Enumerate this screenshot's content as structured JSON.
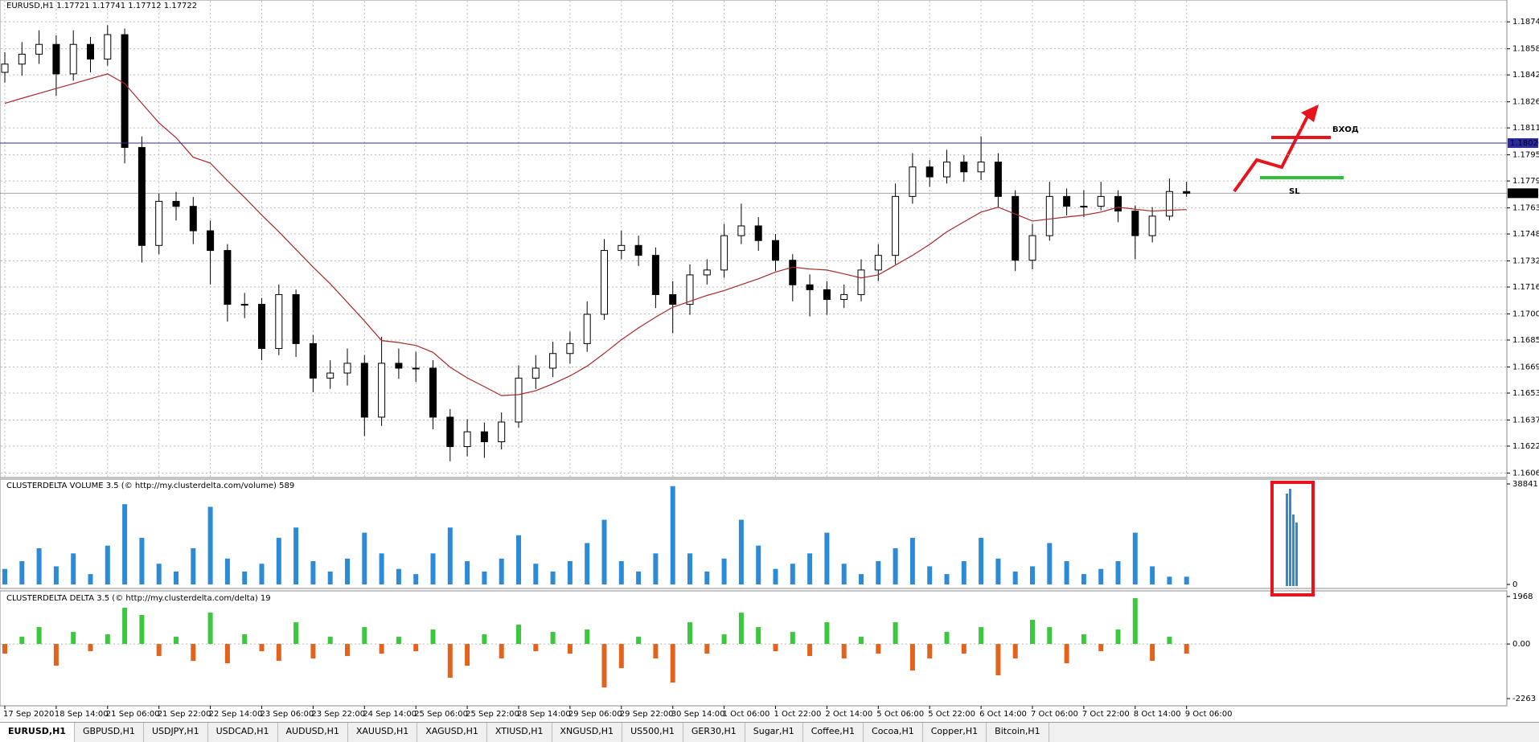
{
  "chart_data": [
    {
      "type": "candlestick",
      "title": "EURUSD,H1  1.17721 1.17741 1.17712 1.17722",
      "grid": true,
      "categories": [
        "17 Sep 2020",
        null,
        null,
        "18 Sep 14:00",
        null,
        null,
        "21 Sep 06:00",
        null,
        null,
        "21 Sep 22:00",
        null,
        null,
        "22 Sep 14:00",
        null,
        null,
        "23 Sep 06:00",
        null,
        null,
        "23 Sep 22:00",
        null,
        null,
        "24 Sep 14:00",
        null,
        null,
        "25 Sep 06:00",
        null,
        null,
        "25 Sep 22:00",
        null,
        null,
        "28 Sep 14:00",
        null,
        null,
        "29 Sep 06:00",
        null,
        null,
        "29 Sep 22:00",
        null,
        null,
        "30 Sep 14:00",
        null,
        null,
        "1 Oct 06:00",
        null,
        null,
        "1 Oct 22:00",
        null,
        null,
        "2 Oct 14:00",
        null,
        null,
        "5 Oct 06:00",
        null,
        null,
        "5 Oct 22:00",
        null,
        null,
        "6 Oct 14:00",
        null,
        null,
        "7 Oct 06:00",
        null,
        null,
        "7 Oct 22:00",
        null,
        null,
        "8 Oct 14:00",
        null,
        null,
        "9 Oct 06:00"
      ],
      "open": [
        1.1844,
        1.18489,
        1.18548,
        1.18606,
        1.18431,
        1.18606,
        1.18519,
        1.18664,
        1.17994,
        1.17412,
        1.17674,
        1.17644,
        1.17499,
        1.17382,
        1.17062,
        1.17062,
        1.168,
        1.1712,
        1.16829,
        1.16624,
        1.16654,
        1.16712,
        1.16392,
        1.16712,
        1.16683,
        1.16683,
        1.16392,
        1.16217,
        1.16305,
        1.16246,
        1.16363,
        1.16624,
        1.16683,
        1.1677,
        1.16829,
        1.17003,
        1.17382,
        1.17412,
        1.17353,
        1.1712,
        1.17062,
        1.17237,
        1.17266,
        1.1747,
        1.17528,
        1.17441,
        1.17324,
        1.17178,
        1.17149,
        1.17091,
        1.1712,
        1.17266,
        1.17353,
        1.17703,
        1.17878,
        1.17819,
        1.17907,
        1.17849,
        1.17907,
        1.17703,
        1.17324,
        1.1747,
        1.17703,
        1.17645,
        1.17645,
        1.17703,
        1.17616,
        1.1747,
        1.17586,
        1.17732
      ],
      "high": [
        1.1856,
        1.1862,
        1.1869,
        1.1866,
        1.1869,
        1.1865,
        1.1872,
        1.187,
        1.1806,
        1.1772,
        1.1773,
        1.177,
        1.1756,
        1.1742,
        1.1713,
        1.171,
        1.1718,
        1.1715,
        1.1688,
        1.1673,
        1.168,
        1.1676,
        1.1687,
        1.168,
        1.1678,
        1.1673,
        1.1644,
        1.1638,
        1.1636,
        1.1642,
        1.167,
        1.1676,
        1.1684,
        1.169,
        1.1708,
        1.1745,
        1.175,
        1.1747,
        1.174,
        1.172,
        1.173,
        1.1733,
        1.1754,
        1.1766,
        1.1758,
        1.1748,
        1.1736,
        1.1724,
        1.172,
        1.1718,
        1.1733,
        1.1742,
        1.1778,
        1.1796,
        1.1792,
        1.1798,
        1.1795,
        1.1806,
        1.1796,
        1.1774,
        1.1754,
        1.1779,
        1.1775,
        1.1774,
        1.1779,
        1.1774,
        1.1765,
        1.1764,
        1.1781,
        1.1779
      ],
      "low": [
        1.1838,
        1.1842,
        1.1849,
        1.183,
        1.1839,
        1.1844,
        1.1848,
        1.179,
        1.1731,
        1.1736,
        1.1756,
        1.1742,
        1.1718,
        1.1696,
        1.1698,
        1.1673,
        1.1676,
        1.1675,
        1.1654,
        1.1656,
        1.1658,
        1.1628,
        1.1634,
        1.1662,
        1.166,
        1.1632,
        1.1613,
        1.1616,
        1.1615,
        1.162,
        1.1633,
        1.1656,
        1.1663,
        1.1671,
        1.1678,
        1.1697,
        1.1733,
        1.1729,
        1.1704,
        1.1689,
        1.17,
        1.1718,
        1.1722,
        1.1742,
        1.1738,
        1.1726,
        1.1708,
        1.1699,
        1.17,
        1.1704,
        1.1708,
        1.172,
        1.173,
        1.1766,
        1.1776,
        1.1778,
        1.1779,
        1.178,
        1.1764,
        1.1726,
        1.1727,
        1.1744,
        1.1759,
        1.1758,
        1.1762,
        1.1755,
        1.1733,
        1.1743,
        1.1756,
        1.177
      ],
      "close": [
        1.18489,
        1.18548,
        1.18606,
        1.18431,
        1.18606,
        1.18519,
        1.18664,
        1.17994,
        1.17412,
        1.17674,
        1.17644,
        1.17499,
        1.17382,
        1.17062,
        1.17062,
        1.168,
        1.1712,
        1.16829,
        1.16624,
        1.16654,
        1.16712,
        1.16392,
        1.16712,
        1.16683,
        1.16683,
        1.16392,
        1.16217,
        1.16305,
        1.16246,
        1.16363,
        1.16624,
        1.16683,
        1.1677,
        1.16829,
        1.17003,
        1.17382,
        1.17412,
        1.17353,
        1.1712,
        1.17062,
        1.17237,
        1.17266,
        1.1747,
        1.17528,
        1.17441,
        1.17324,
        1.17178,
        1.17149,
        1.17091,
        1.1712,
        1.17266,
        1.17353,
        1.17703,
        1.17878,
        1.17819,
        1.17907,
        1.17849,
        1.17907,
        1.17703,
        1.17324,
        1.1747,
        1.17703,
        1.17645,
        1.17645,
        1.17703,
        1.17616,
        1.1747,
        1.17586,
        1.17732,
        1.17722
      ],
      "up_color": "#ffffff",
      "down_color": "#000000",
      "ma": {
        "color": "#a52a2a",
        "values": [
          1.18256,
          1.18286,
          1.18315,
          1.18344,
          1.18373,
          1.18402,
          1.18431,
          1.18373,
          1.18256,
          1.1814,
          1.18052,
          1.17936,
          1.17901,
          1.17796,
          1.17697,
          1.17592,
          1.17493,
          1.17388,
          1.17283,
          1.17184,
          1.17074,
          1.16963,
          1.16847,
          1.16835,
          1.16818,
          1.16777,
          1.16689,
          1.16625,
          1.16573,
          1.1652,
          1.16526,
          1.16549,
          1.1659,
          1.16637,
          1.16695,
          1.16771,
          1.16852,
          1.16922,
          1.16986,
          1.17045,
          1.1708,
          1.17115,
          1.17144,
          1.17179,
          1.17214,
          1.17254,
          1.17283,
          1.17272,
          1.17266,
          1.17243,
          1.17219,
          1.17237,
          1.17295,
          1.17353,
          1.17418,
          1.17493,
          1.17552,
          1.1761,
          1.17639,
          1.17598,
          1.17557,
          1.17569,
          1.17581,
          1.17592,
          1.1761,
          1.17639,
          1.17627,
          1.17616,
          1.17621,
          1.17625
        ]
      },
      "hlines": [
        {
          "value": 1.1802,
          "label": "1.18020",
          "color": "#2b2ba0"
        },
        {
          "value": 1.17722,
          "label": "1.17722",
          "color": "#000000"
        }
      ],
      "ylim": [
        1.16043,
        1.18822
      ],
      "yticks": [
        {
          "value": 1.1874,
          "label": "1.18740"
        },
        {
          "value": 1.1858,
          "label": "1.18580"
        },
        1.18425,
        1.18265,
        {
          "value": 1.1811,
          "label": "1.18110"
        },
        {
          "value": 1.1795,
          "label": "1.17950"
        },
        1.17795,
        1.17635,
        {
          "value": 1.1748,
          "label": "1.17480"
        },
        {
          "value": 1.1732,
          "label": "1.17320"
        },
        1.17165,
        1.17005,
        {
          "value": 1.1685,
          "label": "1.16850"
        },
        {
          "value": 1.1669,
          "label": "1.16690"
        },
        1.16535,
        1.16375,
        {
          "value": 1.1622,
          "label": "1.16220"
        },
        {
          "value": 1.1606,
          "label": "1.16060"
        }
      ]
    },
    {
      "type": "bar",
      "title": "CLUSTERDELTA VOLUME 3.5 (© http://my.clusterdelta.com/volume) 589",
      "color": "#2d8ad6",
      "values": [
        6000,
        9000,
        14000,
        7000,
        12000,
        4000,
        15000,
        31000,
        18000,
        8000,
        5000,
        14000,
        30000,
        10000,
        5000,
        8000,
        18000,
        22000,
        9000,
        5000,
        10000,
        20000,
        12000,
        6000,
        4000,
        12000,
        22000,
        9000,
        5000,
        10000,
        19000,
        8000,
        5000,
        9000,
        16000,
        25000,
        9000,
        5000,
        12000,
        38000,
        12000,
        5000,
        10000,
        25000,
        15000,
        6000,
        8000,
        12000,
        20000,
        8000,
        4000,
        9000,
        14000,
        18000,
        7000,
        4000,
        9000,
        18000,
        10000,
        5000,
        7000,
        16000,
        9000,
        4000,
        6000,
        9000,
        20000,
        7000,
        3000,
        3000
      ],
      "ylim": [
        0,
        38841
      ],
      "yticks": [
        0,
        38841
      ]
    },
    {
      "type": "delta",
      "title": "CLUSTERDELTA DELTA 3.5 (© http://my.clusterdelta.com/delta) 19",
      "color": "#3cc83c",
      "negative_color": "#e2641c",
      "values": [
        -400,
        300,
        700,
        -900,
        500,
        -300,
        400,
        1500,
        1200,
        -500,
        300,
        -700,
        1300,
        -800,
        400,
        -300,
        -700,
        900,
        -600,
        300,
        -500,
        700,
        -400,
        300,
        -300,
        600,
        -1400,
        -900,
        400,
        -600,
        800,
        -300,
        500,
        -400,
        600,
        -1800,
        -1000,
        300,
        -600,
        -1600,
        900,
        -400,
        400,
        1300,
        700,
        -300,
        500,
        -500,
        900,
        -600,
        300,
        -400,
        900,
        -1100,
        -600,
        500,
        -400,
        700,
        -1300,
        -600,
        1000,
        700,
        -800,
        400,
        -300,
        600,
        1900,
        -700,
        300,
        -400
      ],
      "ylim": [
        -2263,
        1968
      ],
      "yticks": [
        1968,
        {
          "value": 0,
          "label": "0.00"
        },
        -2263
      ]
    }
  ],
  "annotations": [
    {
      "text": "ВХОД",
      "color": "#e8141c"
    },
    {
      "text": "SL",
      "color": "#2fbf3a"
    }
  ],
  "tabs": [
    "EURUSD,H1",
    "GBPUSD,H1",
    "USDJPY,H1",
    "USDCAD,H1",
    "AUDUSD,H1",
    "XAUUSD,H1",
    "XAGUSD,H1",
    "XTIUSD,H1",
    "XNGUSD,H1",
    "US500,H1",
    "GER30,H1",
    "Sugar,H1",
    "Coffee,H1",
    "Cocoa,H1",
    "Copper,H1",
    "Bitcoin,H1"
  ]
}
